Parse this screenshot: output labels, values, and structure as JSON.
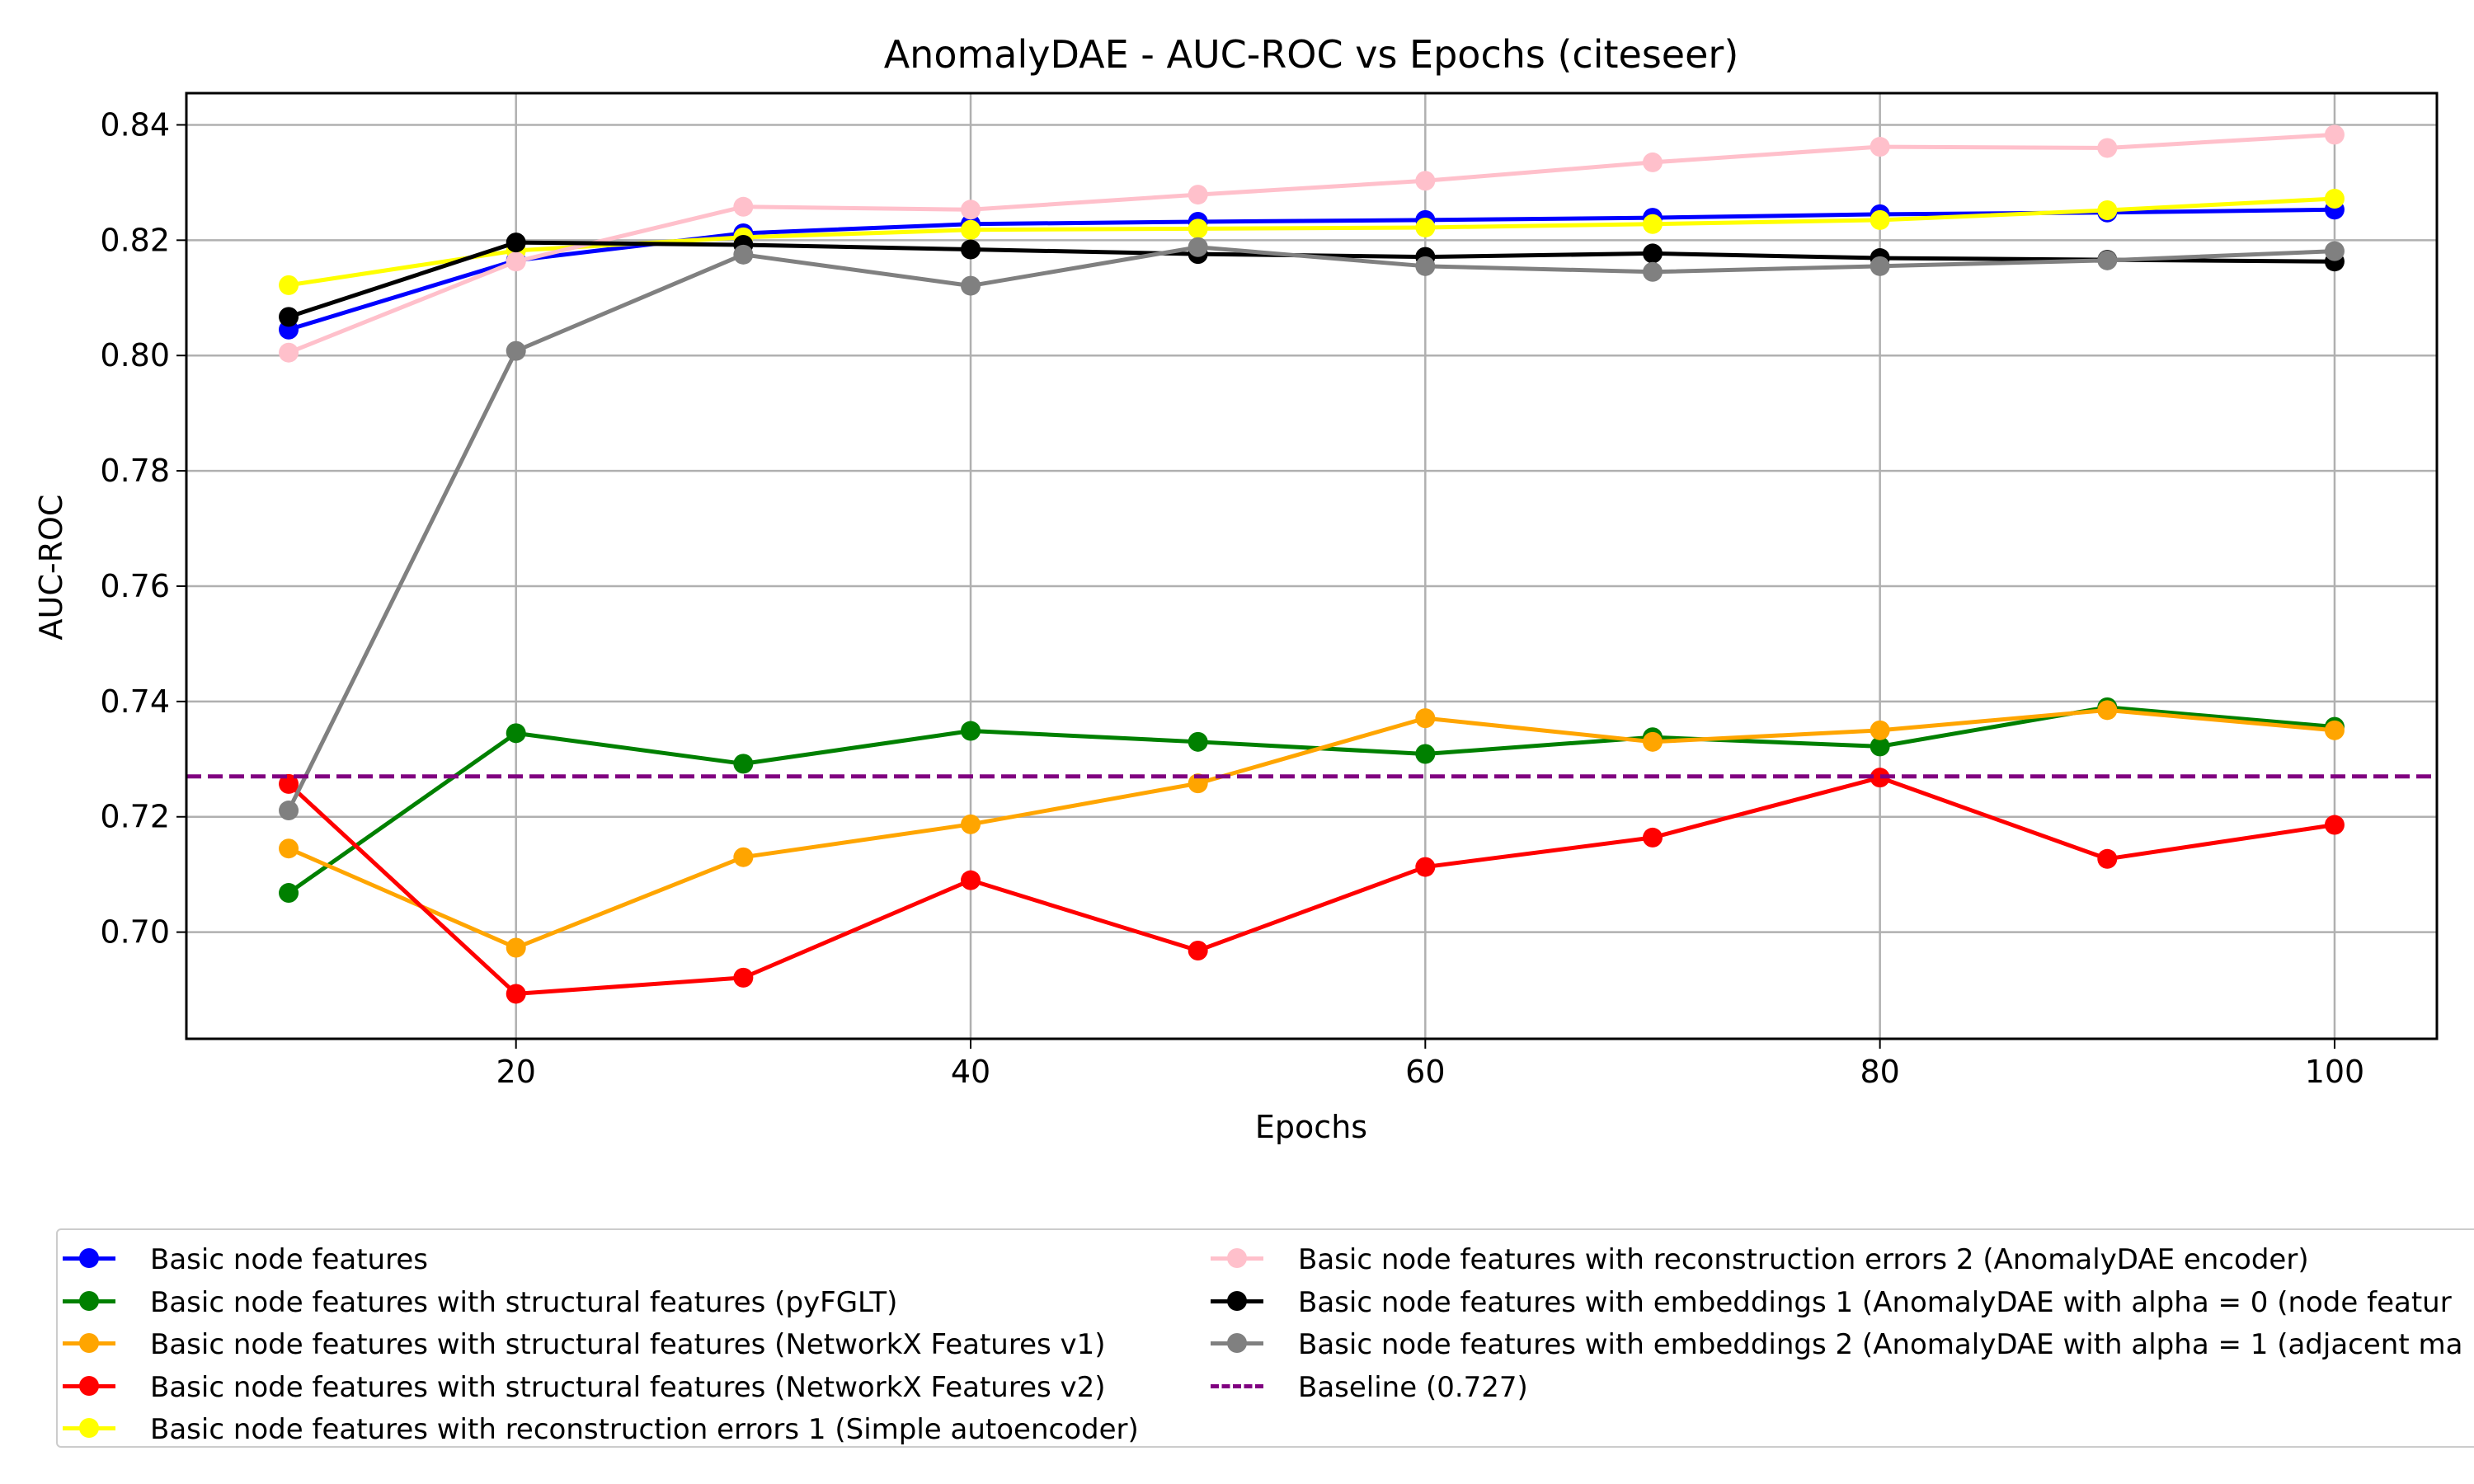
{
  "chart_data": {
    "type": "line",
    "title": "AnomalyDAE - AUC-ROC vs Epochs (citeseer)",
    "xlabel": "Epochs",
    "ylabel": "AUC-ROC",
    "xlim": [
      5.5,
      104.5
    ],
    "ylim": [
      0.6815,
      0.8455
    ],
    "x": [
      10,
      20,
      30,
      40,
      50,
      60,
      70,
      80,
      90,
      100
    ],
    "xticks": [
      20,
      40,
      60,
      80,
      100
    ],
    "xtick_labels": [
      "20",
      "40",
      "60",
      "80",
      "100"
    ],
    "yticks": [
      0.7,
      0.72,
      0.74,
      0.76,
      0.78,
      0.8,
      0.82,
      0.84
    ],
    "ytick_labels": [
      "0.70",
      "0.72",
      "0.74",
      "0.76",
      "0.78",
      "0.80",
      "0.82",
      "0.84"
    ],
    "grid": true,
    "legend_position": "below",
    "series": [
      {
        "name": "Basic node features",
        "color": "#0000ff",
        "values": [
          0.8045,
          0.8165,
          0.8212,
          0.8228,
          0.8232,
          0.8235,
          0.8239,
          0.8245,
          0.8248,
          0.8253
        ]
      },
      {
        "name": "Basic node features with structural features (pyFGLT)",
        "color": "#008000",
        "values": [
          0.7068,
          0.7345,
          0.7292,
          0.7349,
          0.733,
          0.7309,
          0.7338,
          0.7322,
          0.739,
          0.7356
        ]
      },
      {
        "name": "Basic node features with structural features (NetworkX Features v1)",
        "color": "#ffa500",
        "values": [
          0.7145,
          0.6973,
          0.713,
          0.7187,
          0.7258,
          0.7371,
          0.733,
          0.735,
          0.7385,
          0.735
        ]
      },
      {
        "name": "Basic node features with structural features (NetworkX Features v2)",
        "color": "#ff0000",
        "values": [
          0.7257,
          0.6893,
          0.6921,
          0.709,
          0.6968,
          0.7113,
          0.7164,
          0.7268,
          0.7127,
          0.7186
        ]
      },
      {
        "name": "Basic node features with reconstruction errors 1 (Simple autoencoder)",
        "color": "#ffff00",
        "values": [
          0.8122,
          0.8182,
          0.8205,
          0.8218,
          0.822,
          0.8222,
          0.8228,
          0.8235,
          0.8252,
          0.8272
        ]
      },
      {
        "name": "Basic node features with reconstruction errors 2 (AnomalyDAE encoder)",
        "color": "#ffc0cb",
        "values": [
          0.8005,
          0.8163,
          0.8258,
          0.8253,
          0.8279,
          0.8303,
          0.8335,
          0.8362,
          0.836,
          0.8383
        ]
      },
      {
        "name": "Basic node features with embeddings 1 (AnomalyDAE with alpha = 0 (node featur",
        "color": "#000000",
        "values": [
          0.8067,
          0.8196,
          0.8192,
          0.8184,
          0.8176,
          0.8171,
          0.8177,
          0.8169,
          0.8166,
          0.8163
        ]
      },
      {
        "name": "Basic node features with embeddings 2 (AnomalyDAE with alpha = 1 (adjacent ma",
        "color": "#808080",
        "values": [
          0.7211,
          0.8008,
          0.8175,
          0.8121,
          0.8188,
          0.8155,
          0.8145,
          0.8155,
          0.8165,
          0.8181
        ]
      }
    ],
    "baseline": {
      "name": "Baseline (0.727)",
      "value": 0.727,
      "color": "#800080",
      "style": "dashed"
    }
  }
}
